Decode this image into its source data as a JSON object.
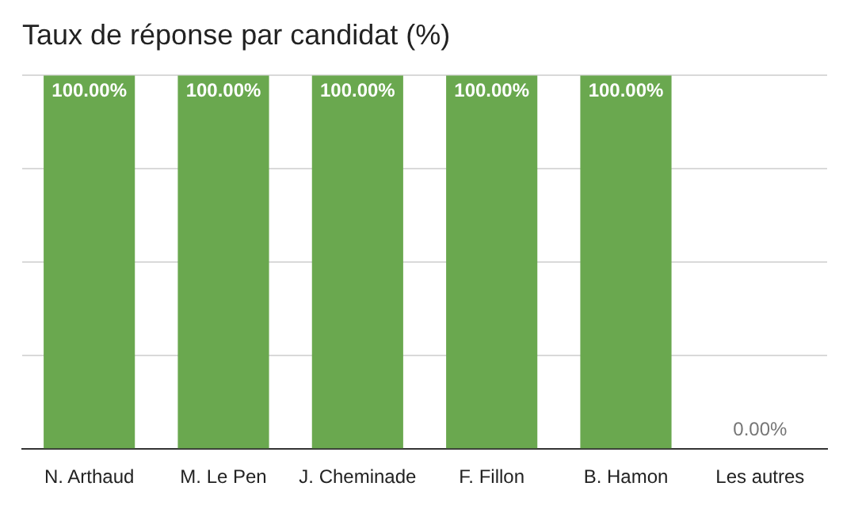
{
  "chart_data": {
    "type": "bar",
    "title": "Taux de réponse par candidat (%)",
    "categories": [
      "N. Arthaud",
      "M. Le Pen",
      "J. Cheminade",
      "F. Fillon",
      "B. Hamon",
      "Les autres"
    ],
    "values": [
      100,
      100,
      100,
      100,
      100,
      0
    ],
    "value_labels": [
      "100.00%",
      "100.00%",
      "100.00%",
      "100.00%",
      "100.00%",
      "0.00%"
    ],
    "color": "#6aa84f",
    "ylim": [
      0,
      100
    ],
    "yticks": [
      {
        "value": 0,
        "label": null
      },
      {
        "value": 25,
        "label": null
      },
      {
        "value": 50,
        "label": null
      },
      {
        "value": 75,
        "label": null
      },
      {
        "value": 100,
        "label": null
      }
    ],
    "grid": "y",
    "tick_labels": "x"
  }
}
